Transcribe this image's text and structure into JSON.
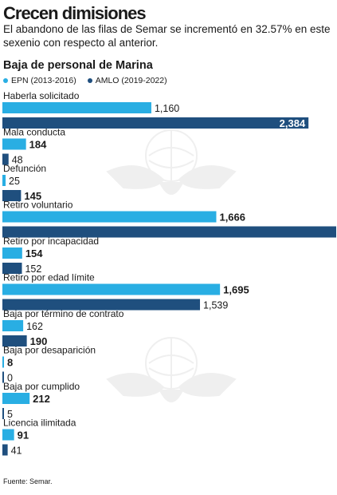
{
  "header": {
    "title": "Crecen dimisiones",
    "subtitle": "El abandono de las filas de Semar se incrementó en 32.57% en este sexenio con respecto al anterior."
  },
  "chart_data": {
    "type": "bar",
    "orientation": "horizontal",
    "title": "Baja de personal de Marina",
    "categories": [
      "Haberla solicitado",
      "Mala conducta",
      "Defunción",
      "Retiro voluntario",
      "Retiro por incapacidad",
      "Retiro por edad límite",
      "Baja por término de contrato",
      "Baja por desaparición",
      "Baja por cumplido",
      "Licencia ilimitada"
    ],
    "series": [
      {
        "name": "EPN (2013-2016)",
        "color": "#29aee3",
        "values": [
          1160,
          184,
          25,
          1666,
          154,
          1695,
          162,
          8,
          212,
          91
        ],
        "value_labels": [
          "1,160",
          "184",
          "25",
          "1,666",
          "154",
          "1,695",
          "162",
          "8",
          "212",
          "91"
        ]
      },
      {
        "name": "AMLO (2019-2022)",
        "color": "#1f4f7e",
        "values": [
          2384,
          48,
          145,
          2600,
          152,
          1539,
          190,
          0,
          5,
          41
        ],
        "value_labels": [
          "2,384",
          "48",
          "145",
          "",
          "152",
          "1,539",
          "190",
          "0",
          "5",
          "41"
        ]
      }
    ],
    "bold_labels": [
      [
        false,
        true,
        false,
        true,
        true,
        true,
        false,
        true,
        true,
        true
      ],
      [
        true,
        false,
        true,
        false,
        false,
        false,
        true,
        false,
        false,
        false
      ]
    ],
    "xlim": [
      0,
      2600
    ],
    "legend_position": "top-left",
    "grid": false
  },
  "footer": {
    "source": "Fuente: Semar."
  }
}
